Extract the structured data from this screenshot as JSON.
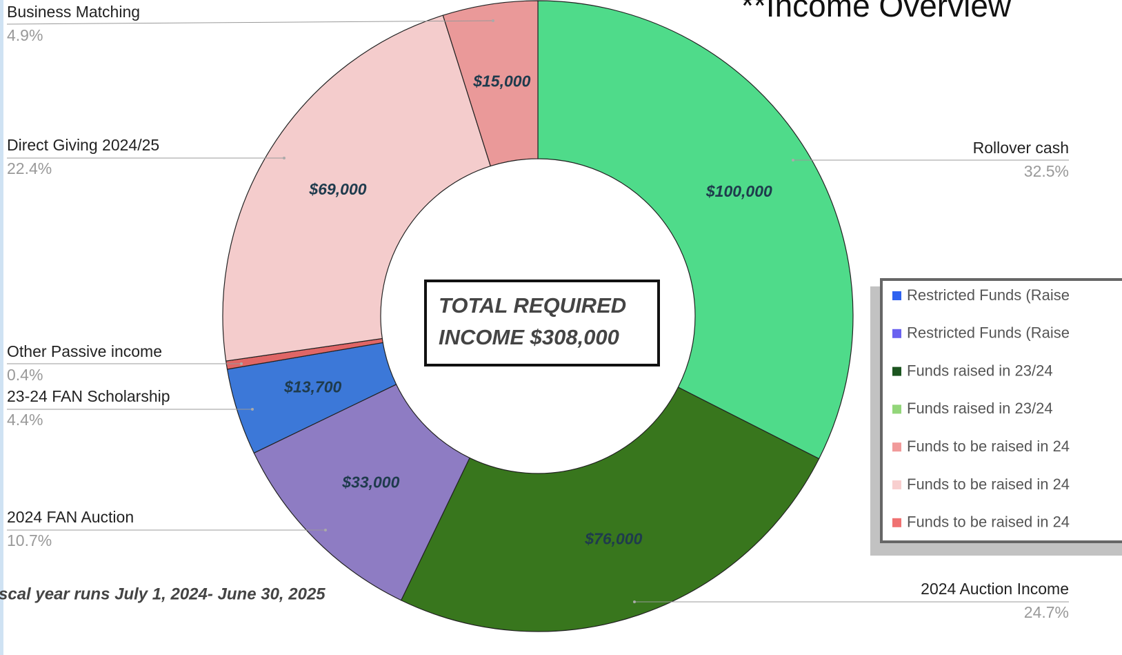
{
  "chart_data": {
    "type": "donut",
    "title": "**Income Overview",
    "center_text": [
      "TOTAL REQUIRED",
      "INCOME $308,000"
    ],
    "footnote": "scal year runs July 1, 2024- June 30, 2025",
    "categories": [
      "Rollover cash",
      "2024 Auction Income",
      "2024 FAN Auction",
      "23-24 FAN Scholarship",
      "Other Passive income",
      "Direct Giving 2024/25",
      "Business Matching"
    ],
    "values": [
      100000,
      76000,
      33000,
      13700,
      1300,
      69000,
      15000
    ],
    "value_labels": [
      "$100,000",
      "$76,000",
      "$33,000",
      "$13,700",
      null,
      "$69,000",
      "$15,000"
    ],
    "percent_labels": [
      "32.5%",
      "24.7%",
      "10.7%",
      "4.4%",
      "0.4%",
      "22.4%",
      "4.9%"
    ],
    "colors": [
      "#4fdb8a",
      "#38761d",
      "#8e7cc3",
      "#3c78d8",
      "#e06666",
      "#f4cccc",
      "#ea9999"
    ],
    "legend": {
      "position": "right",
      "entries": [
        {
          "name": "Restricted Funds (Raise",
          "color": "#2f62f0"
        },
        {
          "name": "Restricted Funds (Raise",
          "color": "#6a62f0"
        },
        {
          "name": "Funds raised in 23/24",
          "color": "#1c5520"
        },
        {
          "name": "Funds raised in 23/24",
          "color": "#93d67a"
        },
        {
          "name": "Funds to be raised in 24",
          "color": "#f19a9a"
        },
        {
          "name": "Funds to be raised in 24",
          "color": "#f8cfcf"
        },
        {
          "name": "Funds to be raised in 24",
          "color": "#f07272"
        }
      ]
    }
  }
}
